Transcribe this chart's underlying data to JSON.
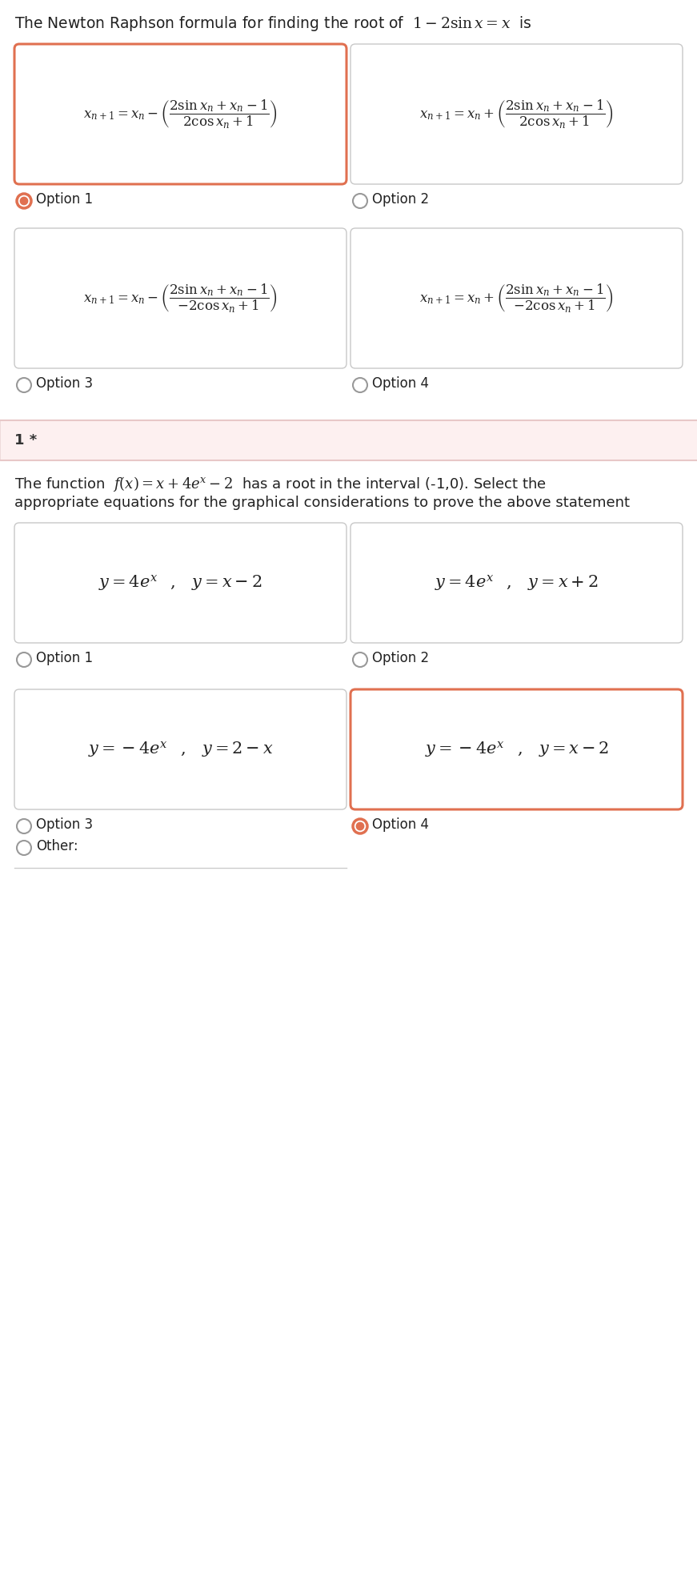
{
  "bg_color": "#ffffff",
  "border_selected": "#e07050",
  "border_normal": "#c8c8c8",
  "text_color": "#222222",
  "radio_selected_color": "#e07050",
  "radio_unselected_color": "#999999",
  "separator_bg": "#fdf0f0",
  "q1_title_plain": "The Newton Raphson formula for finding the root of  ",
  "q1_title_math": "$1-2\\sin x = x$",
  "q1_title_suffix": "  is",
  "q1_options": [
    {
      "label": "Option 1",
      "selected": true
    },
    {
      "label": "Option 2",
      "selected": false
    },
    {
      "label": "Option 3",
      "selected": false
    },
    {
      "label": "Option 4",
      "selected": false
    }
  ],
  "q1_formulas": [
    "$x_{n+1} = x_n - \\left(\\dfrac{2\\sin x_n + x_n - 1}{2\\cos x_n + 1}\\right)$",
    "$x_{n+1} = x_n + \\left(\\dfrac{2\\sin x_n + x_n - 1}{2\\cos x_n + 1}\\right)$",
    "$x_{n+1} = x_n - \\left(\\dfrac{2\\sin x_n + x_n - 1}{-2\\cos x_n + 1}\\right)$",
    "$x_{n+1} = x_n + \\left(\\dfrac{2\\sin x_n + x_n - 1}{-2\\cos x_n + 1}\\right)$"
  ],
  "separator_label": "1 *",
  "q2_title_line1": "The function  $f(x) = x + 4e^x - 2$  has a root in the interval (-1,0). Select the",
  "q2_title_line2": "appropriate equations for the graphical considerations to prove the above statement",
  "q2_options": [
    {
      "label": "Option 1",
      "selected": false
    },
    {
      "label": "Option 2",
      "selected": false
    },
    {
      "label": "Option 3",
      "selected": false
    },
    {
      "label": "Option 4",
      "selected": true
    }
  ],
  "q2_formulas": [
    "$y = 4e^x \\;\\;\\; , \\;\\;\\; y = x-2$",
    "$y = 4e^x \\;\\;\\; , \\;\\;\\; y = x+2$",
    "$y = -4e^x \\;\\;\\; , \\;\\;\\; y = 2-x$",
    "$y = -4e^x \\;\\;\\; , \\;\\;\\; y = x-2$"
  ],
  "other_label": "Other:"
}
